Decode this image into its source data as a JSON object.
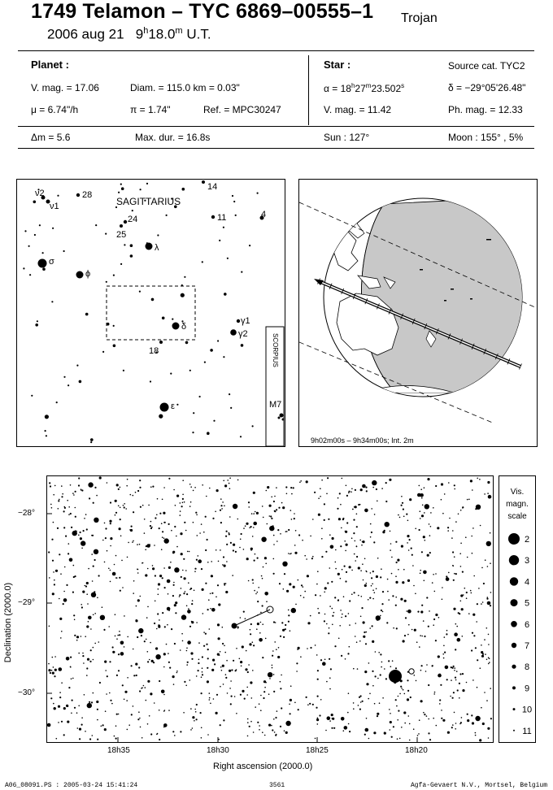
{
  "title": "1749 Telamon  –  TYC 6869–00555–1",
  "category": "Trojan",
  "date": "2006 aug 21",
  "time_h": "9",
  "time_h_sup": "h",
  "time_m": "18.0",
  "time_m_sup": "m",
  "time_suffix": "U.T.",
  "planet": {
    "header": "Planet :",
    "vmag": "V. mag. = 17.06",
    "diam": "Diam. = 115.0 km = 0.03\"",
    "mu": "μ =  6.74\"/h",
    "pi": "π =  1.74\"",
    "ref": "Ref. = MPC30247"
  },
  "star": {
    "header": "Star :",
    "source": "Source cat.  TYC2",
    "ra_prefix": "α = 18",
    "ra_h": "h",
    "ra_mid": "27",
    "ra_m": "m",
    "ra_val": "23.502",
    "ra_s": "s",
    "dec": "δ = −29°05'26.48\"",
    "vmag": "V. mag. = 11.42",
    "phmag": "Ph. mag. = 12.33"
  },
  "event": {
    "dm": "Δm = 5.6",
    "maxdur": "Max. dur. = 16.8s",
    "sun": "Sun : 127°",
    "moon": "Moon : 155° ,  5%"
  },
  "finder": {
    "constellation": "SAGITTARIUS",
    "scorpius": "SCORPIUS",
    "labels": {
      "nu2": "ν2",
      "nu1": "ν1",
      "n28": "28",
      "n14": "14",
      "n24": "24",
      "n25": "25",
      "n11": "11",
      "n4": "4",
      "sigma": "σ",
      "phi": "ϕ",
      "lambda": "λ",
      "delta": "δ",
      "n18": "18",
      "gamma1": "γ1",
      "gamma2": "γ2",
      "epsilon": "ε",
      "m7": "M7"
    }
  },
  "globe": {
    "caption": "9h02m00s –  9h34m00s; Int.  2m"
  },
  "chart": {
    "ylabel": "Declination (2000.0)",
    "xlabel": "Right ascension (2000.0)",
    "dec_ticks": [
      "−28°",
      "−29°",
      "−30°"
    ],
    "ra_ticks": [
      "18h35",
      "18h30",
      "18h25",
      "18h20"
    ]
  },
  "scale": {
    "title_1": "Vis.",
    "title_2": "magn.",
    "title_3": "scale",
    "mags": [
      "2",
      "3",
      "4",
      "5",
      "6",
      "7",
      "8",
      "9",
      "10",
      "11"
    ]
  },
  "footer": {
    "file": "A06_08091.PS : 2005-03-24 15:41:24",
    "number": "3561",
    "credit": "Agfa-Gevaert N.V., Mortsel, Belgium"
  }
}
